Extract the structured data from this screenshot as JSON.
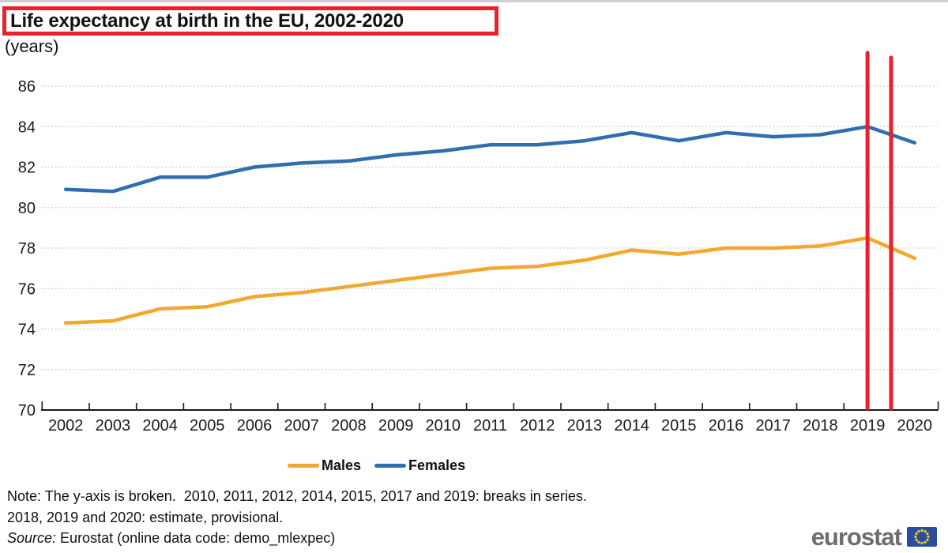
{
  "title": "Life expectancy at birth in the EU, 2002-2020",
  "subtitle": "(years)",
  "chart_data": {
    "type": "line",
    "title": "Life expectancy at birth in the EU, 2002-2020",
    "unit_label": "(years)",
    "x": [
      2002,
      2003,
      2004,
      2005,
      2006,
      2007,
      2008,
      2009,
      2010,
      2011,
      2012,
      2013,
      2014,
      2015,
      2016,
      2017,
      2018,
      2019,
      2020
    ],
    "series": [
      {
        "name": "Males",
        "color": "#f2a72e",
        "values": [
          74.3,
          74.4,
          75.0,
          75.1,
          75.6,
          75.8,
          76.1,
          76.4,
          76.7,
          77.0,
          77.1,
          77.4,
          77.9,
          77.7,
          78.0,
          78.0,
          78.1,
          78.5,
          77.5
        ]
      },
      {
        "name": "Females",
        "color": "#2f6eb0",
        "values": [
          80.9,
          80.8,
          81.5,
          81.5,
          82.0,
          82.2,
          82.3,
          82.6,
          82.8,
          83.1,
          83.1,
          83.3,
          83.7,
          83.3,
          83.7,
          83.5,
          83.6,
          84.0,
          83.2
        ]
      }
    ],
    "ylim": [
      70,
      86
    ],
    "yticks": [
      70,
      72,
      74,
      76,
      78,
      80,
      82,
      84,
      86
    ],
    "grid": "horizontal-dotted",
    "legend_position": "bottom-center",
    "break_markers": {
      "color": "#e8212e",
      "positions": [
        2019.0,
        2019.5
      ],
      "note": "vertical red lines marking series break"
    }
  },
  "legend": {
    "items": [
      {
        "label": "Males",
        "color": "#f2a72e"
      },
      {
        "label": "Females",
        "color": "#2f6eb0"
      }
    ]
  },
  "notes": {
    "line1": "Note: The y-axis is broken.  2010, 2011, 2012, 2014, 2015, 2017 and 2019: breaks in series.",
    "line2": "2018, 2019 and 2020: estimate, provisional."
  },
  "source": {
    "label": "Source:",
    "text": " Eurostat (online data code: demo_mlexpec)"
  },
  "logo": {
    "text": "eurostat",
    "flag_blue": "#2a4da0",
    "star_yellow": "#e6c426"
  },
  "colors": {
    "accent_red": "#e8212e",
    "grid_gray": "#c4c4c4",
    "axis_black": "#1a1a1a"
  }
}
